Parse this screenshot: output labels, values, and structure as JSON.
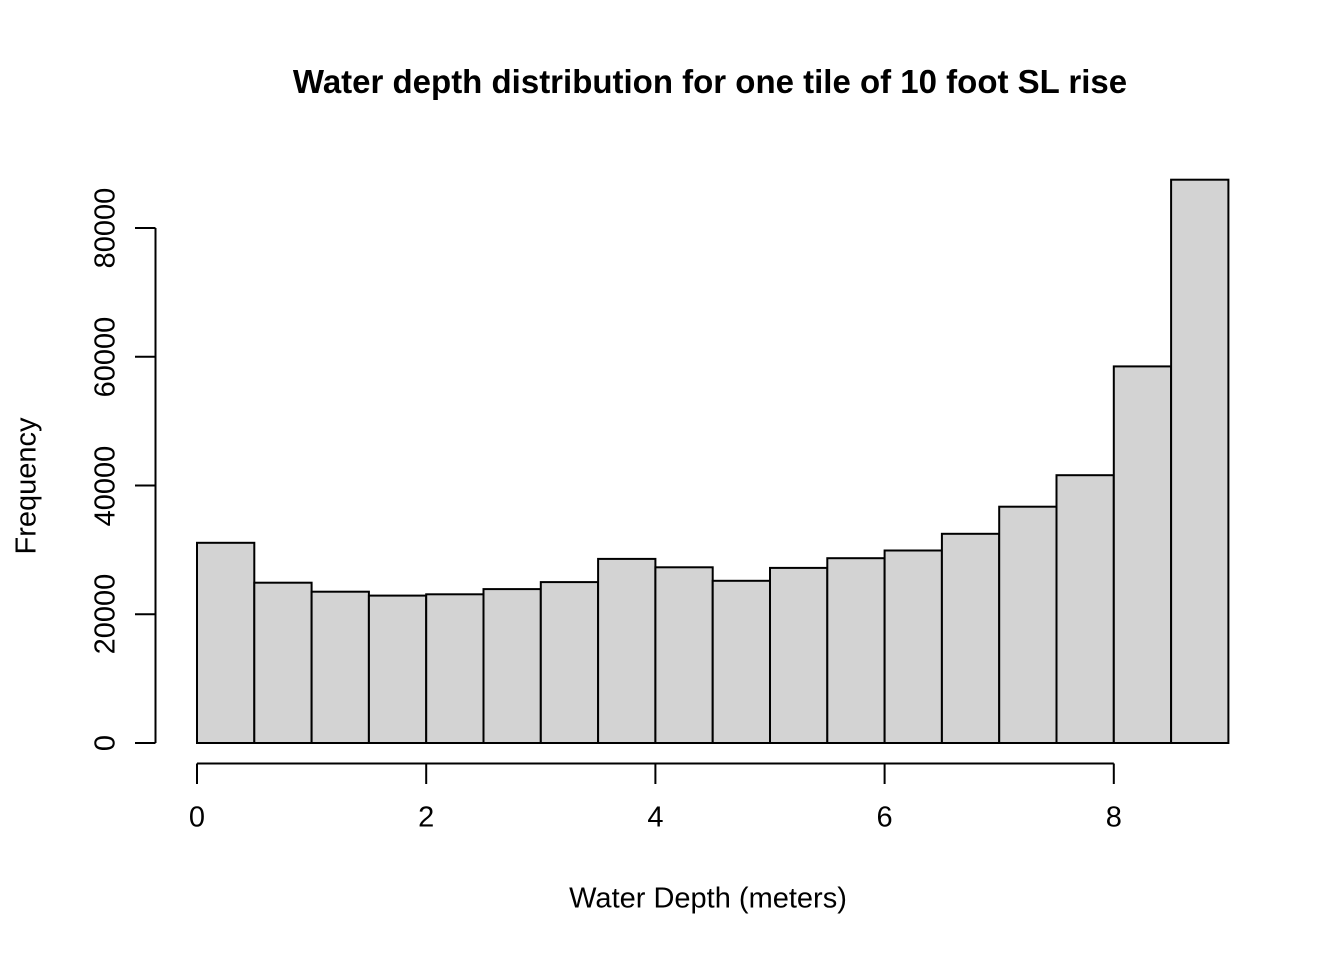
{
  "chart_data": {
    "type": "bar",
    "subtype": "histogram",
    "title": "Water depth distribution for one tile of 10 foot SL rise",
    "xlabel": "Water Depth (meters)",
    "ylabel": "Frequency",
    "bin_start": 0,
    "bin_width": 0.5,
    "bin_edges": [
      0,
      0.5,
      1,
      1.5,
      2,
      2.5,
      3,
      3.5,
      4,
      4.5,
      5,
      5.5,
      6,
      6.5,
      7,
      7.5,
      8,
      8.5,
      9
    ],
    "values": [
      31100,
      24900,
      23500,
      22900,
      23100,
      23900,
      25000,
      28600,
      27300,
      25200,
      27200,
      28700,
      29900,
      32500,
      36700,
      41600,
      58500,
      87500
    ],
    "xlim": [
      0,
      9
    ],
    "ylim": [
      0,
      87500
    ],
    "x_ticks": [
      0,
      2,
      4,
      6,
      8
    ],
    "x_tick_labels": [
      "0",
      "2",
      "4",
      "6",
      "8"
    ],
    "y_ticks": [
      0,
      20000,
      40000,
      60000,
      80000
    ],
    "y_tick_labels": [
      "0",
      "20000",
      "40000",
      "60000",
      "80000"
    ],
    "grid": false,
    "legend": "none",
    "colors": {
      "bar_fill": "#d3d3d3",
      "bar_stroke": "#000000",
      "axis": "#000000",
      "text": "#000000",
      "background": "#ffffff"
    }
  }
}
